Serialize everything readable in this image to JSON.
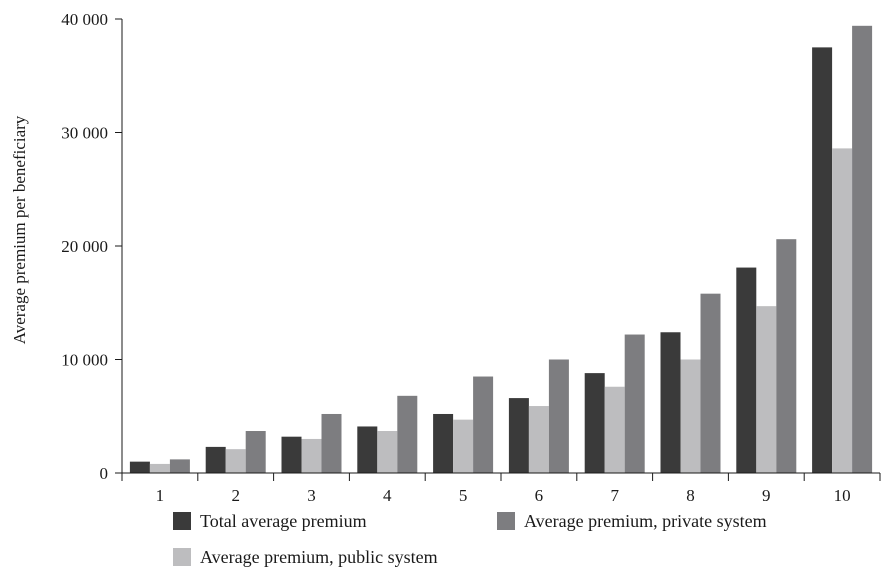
{
  "chart_data": {
    "type": "bar",
    "title": "",
    "xlabel": "",
    "ylabel": "Average premium per beneficiary",
    "ylim": [
      0,
      40000
    ],
    "yticks": [
      0,
      10000,
      20000,
      30000,
      40000
    ],
    "ytick_labels": [
      "0",
      "10 000",
      "20 000",
      "30 000",
      "40 000"
    ],
    "grid": false,
    "legend_position": "bottom",
    "categories": [
      "1",
      "2",
      "3",
      "4",
      "5",
      "6",
      "7",
      "8",
      "9",
      "10"
    ],
    "series": [
      {
        "name": "Total average premium",
        "color": "#3a3a3a",
        "values": [
          1000,
          2300,
          3200,
          4100,
          5200,
          6600,
          8800,
          12400,
          18100,
          37500
        ]
      },
      {
        "name": "Average premium, public system",
        "color": "#bdbdbf",
        "values": [
          800,
          2100,
          3000,
          3700,
          4700,
          5900,
          7600,
          10000,
          14700,
          28600
        ]
      },
      {
        "name": "Average premium, private system",
        "color": "#7d7d80",
        "values": [
          1200,
          3700,
          5200,
          6800,
          8500,
          10000,
          12200,
          15800,
          20600,
          39400
        ]
      }
    ],
    "legend_order": [
      0,
      2,
      1
    ]
  }
}
